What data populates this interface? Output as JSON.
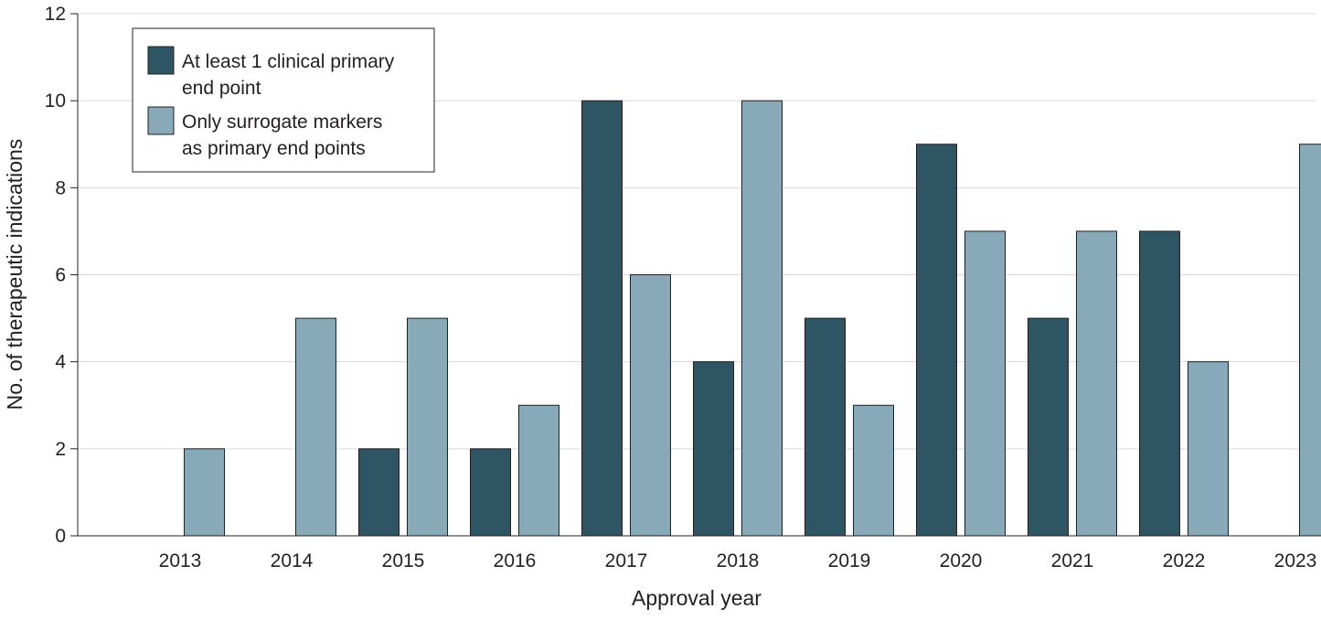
{
  "chart_data": {
    "type": "bar",
    "xlabel": "Approval year",
    "ylabel": "No. of therapeutic indications",
    "categories": [
      "2013",
      "2014",
      "2015",
      "2016",
      "2017",
      "2018",
      "2019",
      "2020",
      "2021",
      "2022",
      "2023"
    ],
    "series": [
      {
        "name": "At least 1 clinical primary end point",
        "name_lines": [
          "At least 1 clinical primary",
          "end point"
        ],
        "color": "#2e5564",
        "values": [
          0,
          0,
          2,
          2,
          10,
          4,
          5,
          9,
          5,
          7,
          0
        ]
      },
      {
        "name": "Only surrogate markers as primary end points",
        "name_lines": [
          "Only surrogate markers",
          "as primary end points"
        ],
        "color": "#88a9b8",
        "values": [
          2,
          5,
          5,
          3,
          6,
          10,
          3,
          7,
          7,
          4,
          9
        ]
      }
    ],
    "ylim": [
      0,
      12
    ],
    "yticks": [
      0,
      2,
      4,
      6,
      8,
      10,
      12
    ],
    "grid": true,
    "legend_position": "top-left"
  }
}
